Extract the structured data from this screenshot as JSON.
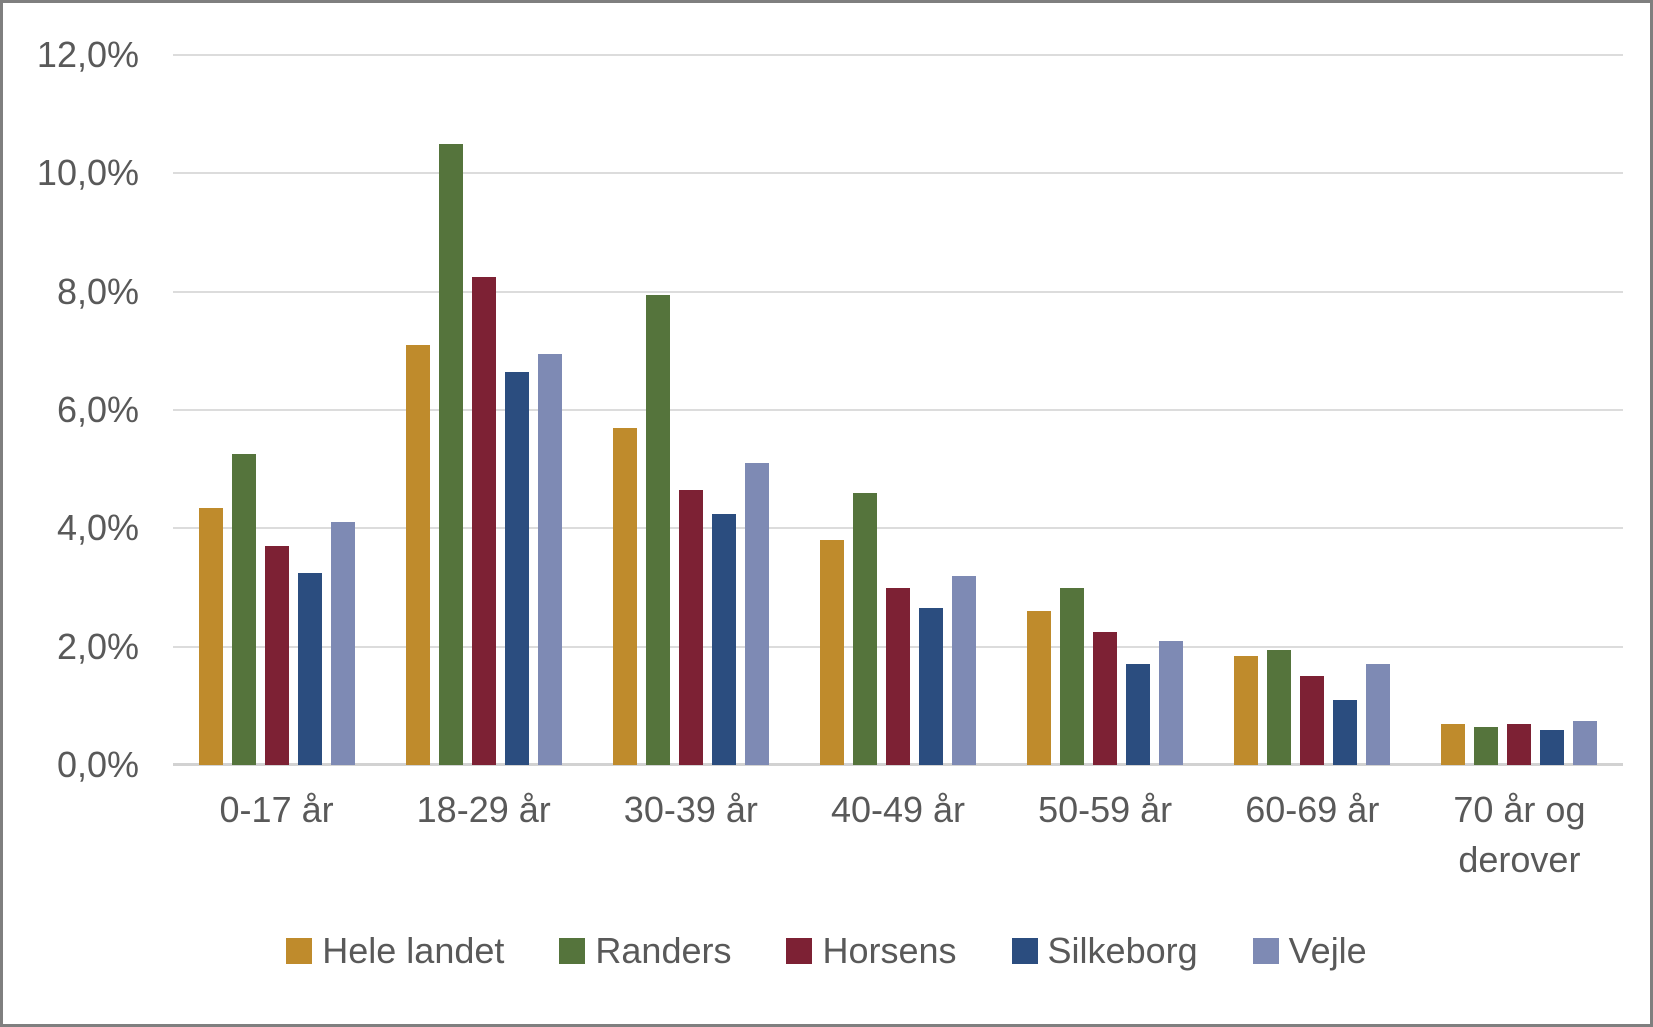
{
  "chart_data": {
    "type": "bar",
    "title": "",
    "xlabel": "",
    "ylabel": "",
    "grid": true,
    "legend_position": "bottom",
    "value_format": "danish-percent",
    "ylim": [
      0,
      12
    ],
    "ytick_step": 2,
    "yticks": [
      {
        "value": 0,
        "label": "0,0%"
      },
      {
        "value": 2,
        "label": "2,0%"
      },
      {
        "value": 4,
        "label": "4,0%"
      },
      {
        "value": 6,
        "label": "6,0%"
      },
      {
        "value": 8,
        "label": "8,0%"
      },
      {
        "value": 10,
        "label": "10,0%"
      },
      {
        "value": 12,
        "label": "12,0%"
      }
    ],
    "categories": [
      "0-17 år",
      "18-29 år",
      "30-39 år",
      "40-49 år",
      "50-59 år",
      "60-69 år",
      "70 år og derover"
    ],
    "series": [
      {
        "name": "Hele landet",
        "color": "#BF8B2C",
        "values": [
          4.35,
          7.1,
          5.7,
          3.8,
          2.6,
          1.85,
          0.7
        ]
      },
      {
        "name": "Randers",
        "color": "#55743C",
        "values": [
          5.25,
          10.5,
          7.95,
          4.6,
          3.0,
          1.95,
          0.65
        ]
      },
      {
        "name": "Horsens",
        "color": "#7D2134",
        "values": [
          3.7,
          8.25,
          4.65,
          3.0,
          2.25,
          1.5,
          0.7
        ]
      },
      {
        "name": "Silkeborg",
        "color": "#2B4D7F",
        "values": [
          3.25,
          6.65,
          4.25,
          2.65,
          1.7,
          1.1,
          0.6
        ]
      },
      {
        "name": "Vejle",
        "color": "#7E8AB4",
        "values": [
          4.1,
          6.95,
          5.1,
          3.2,
          2.1,
          1.7,
          0.75
        ]
      }
    ]
  },
  "style": {
    "frame_border_color": "#7F7F7F",
    "background_color": "#FFFFFF",
    "gridline_color": "#DCDCDC",
    "axis_line_color": "#D2D2D2",
    "label_color": "#595959"
  }
}
